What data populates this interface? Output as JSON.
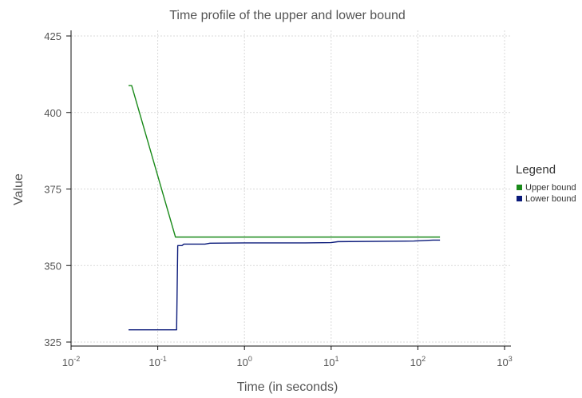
{
  "chart_data": {
    "type": "line",
    "title": "Time profile of the upper and lower bound",
    "xlabel": "Time (in seconds)",
    "ylabel": "Value",
    "xscale": "log",
    "xlim": [
      0.01,
      1000
    ],
    "ylim": [
      325,
      427
    ],
    "grid": true,
    "legend_title": "Legend",
    "legend_placement": "right",
    "x_ticks": [
      {
        "base": "10",
        "exp": "-2",
        "value": 0.01
      },
      {
        "base": "10",
        "exp": "-1",
        "value": 0.1
      },
      {
        "base": "10",
        "exp": "0",
        "value": 1
      },
      {
        "base": "10",
        "exp": "1",
        "value": 10
      },
      {
        "base": "10",
        "exp": "2",
        "value": 100
      },
      {
        "base": "10",
        "exp": "3",
        "value": 1000
      }
    ],
    "y_ticks": [
      {
        "label": "325",
        "value": 325
      },
      {
        "label": "350",
        "value": 350
      },
      {
        "label": "375",
        "value": 375
      },
      {
        "label": "400",
        "value": 400
      },
      {
        "label": "425",
        "value": 425
      }
    ],
    "series": [
      {
        "name": "Upper bound",
        "color": "#1a8a1a",
        "points": [
          [
            0.046,
            408.8
          ],
          [
            0.05,
            408.8
          ],
          [
            0.16,
            359.3
          ],
          [
            180,
            359.3
          ]
        ]
      },
      {
        "name": "Lower bound",
        "color": "#0a1a7a",
        "points": [
          [
            0.046,
            329
          ],
          [
            0.16,
            329
          ],
          [
            0.165,
            329
          ],
          [
            0.17,
            356.5
          ],
          [
            0.19,
            356.5
          ],
          [
            0.2,
            357
          ],
          [
            0.35,
            357
          ],
          [
            0.4,
            357.3
          ],
          [
            1,
            357.4
          ],
          [
            5,
            357.4
          ],
          [
            10,
            357.5
          ],
          [
            12,
            357.8
          ],
          [
            90,
            358
          ],
          [
            150,
            358.3
          ],
          [
            180,
            358.3
          ]
        ]
      }
    ]
  }
}
